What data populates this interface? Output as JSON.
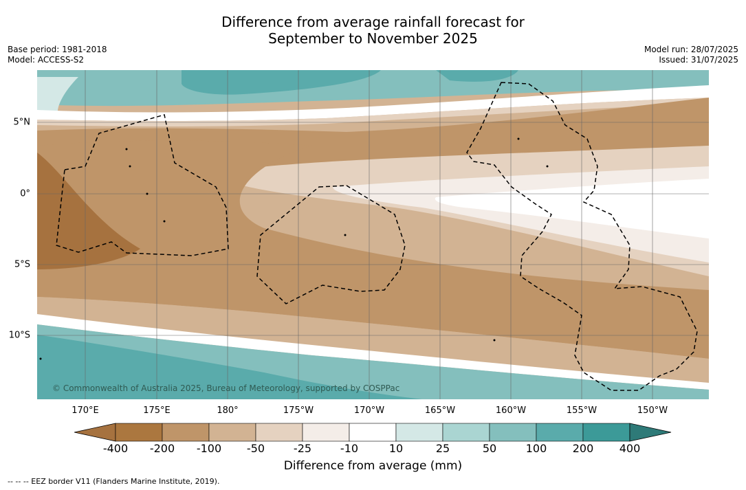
{
  "title_line1": "Difference from average rainfall forecast for",
  "title_line2": "September to November 2025",
  "meta_left": {
    "base_period": "Base period: 1981-2018",
    "model": "Model: ACCESS-S2"
  },
  "meta_right": {
    "model_run": "Model run: 28/07/2025",
    "issued": "Issued: 31/07/2025"
  },
  "lon_labels": [
    "170°E",
    "175°E",
    "180°",
    "175°W",
    "170°W",
    "165°W",
    "160°W",
    "155°W",
    "150°W"
  ],
  "lat_labels": [
    "5°N",
    "0°",
    "5°S",
    "10°S"
  ],
  "colorbar": {
    "ticks": [
      "-400",
      "-200",
      "-100",
      "-50",
      "-25",
      "-10",
      "10",
      "25",
      "50",
      "100",
      "200",
      "400"
    ],
    "colors": [
      "#a6723f",
      "#ab773f",
      "#bf9569",
      "#d2b393",
      "#e5d2c0",
      "#f4ede8",
      "#ffffff",
      "#d4e8e6",
      "#aad5d2",
      "#84bfbd",
      "#5aabab",
      "#3c9a98",
      "#2e7a78"
    ],
    "title": "Difference from average (mm)"
  },
  "copyright": "© Commonwealth of Australia 2025, Bureau of Meteorology, supported by COSPPac",
  "footer": "--  --  -- EEZ border V11 (Flanders Marine Institute, 2019)."
}
